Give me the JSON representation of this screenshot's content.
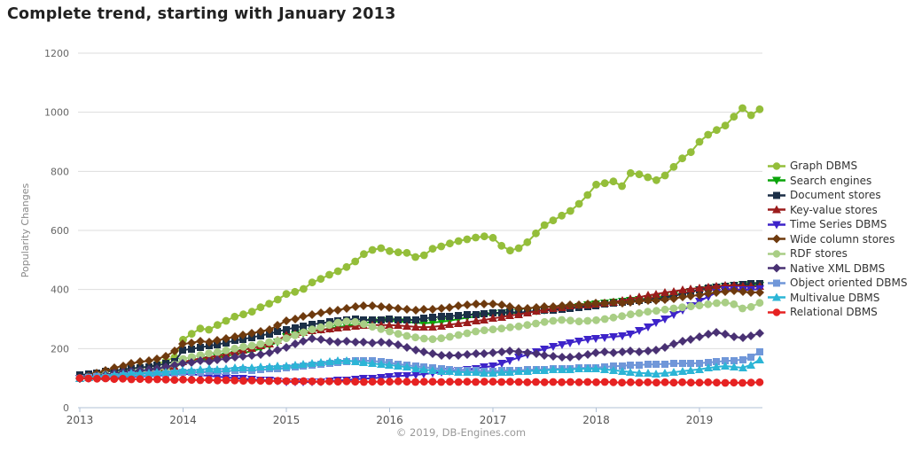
{
  "page": {
    "title": "Complete trend, starting with January 2013",
    "footer": "© 2019, DB-Engines.com"
  },
  "style": {
    "title_color": "#222222",
    "gridline_color": "#dddddd",
    "axis_line_color": "#b0c1d6",
    "ytick_color": "#666666",
    "xtick_color": "#555555",
    "ylabel_color": "#888888",
    "legend_text_color": "#333333"
  },
  "chart_data": {
    "type": "line",
    "title": "Complete trend, starting with January 2013",
    "xlabel": "",
    "ylabel": "Popularity Changes",
    "ylim": [
      0,
      1200
    ],
    "yticks": [
      0,
      200,
      400,
      600,
      800,
      1000,
      1200
    ],
    "x_tick_labels": [
      "2013",
      "2014",
      "2015",
      "2016",
      "2017",
      "2018",
      "2019"
    ],
    "x_start": "2013-01",
    "x_end": "2019-08",
    "x_interval": "month",
    "n_points": 80,
    "grid": true,
    "legend_position": "right",
    "footer": "© 2019, DB-Engines.com",
    "series": [
      {
        "name": "Graph DBMS",
        "color": "#94be3a",
        "marker": "circle",
        "values": [
          100,
          105,
          112,
          110,
          118,
          124,
          130,
          138,
          135,
          148,
          158,
          170,
          230,
          250,
          268,
          264,
          280,
          294,
          308,
          316,
          325,
          340,
          352,
          366,
          385,
          392,
          402,
          424,
          436,
          450,
          462,
          476,
          495,
          520,
          534,
          540,
          530,
          526,
          524,
          510,
          516,
          538,
          546,
          556,
          564,
          570,
          576,
          580,
          575,
          548,
          532,
          540,
          560,
          590,
          618,
          634,
          650,
          666,
          690,
          720,
          755,
          760,
          766,
          750,
          794,
          790,
          780,
          770,
          786,
          815,
          844,
          865,
          900,
          924,
          940,
          955,
          985,
          1014,
          990,
          1010
        ]
      },
      {
        "name": "Search engines",
        "color": "#0aa40a",
        "marker": "triangle-down",
        "values": [
          100,
          102,
          105,
          104,
          108,
          112,
          115,
          118,
          116,
          122,
          128,
          134,
          155,
          160,
          165,
          162,
          170,
          175,
          181,
          186,
          191,
          200,
          210,
          222,
          240,
          246,
          252,
          258,
          263,
          268,
          272,
          277,
          282,
          287,
          290,
          293,
          295,
          292,
          290,
          288,
          286,
          288,
          291,
          295,
          300,
          305,
          308,
          313,
          318,
          320,
          322,
          320,
          324,
          327,
          330,
          332,
          335,
          338,
          342,
          348,
          352,
          355,
          358,
          361,
          364,
          367,
          370,
          373,
          377,
          381,
          386,
          392,
          398,
          403,
          407,
          410,
          413,
          416,
          413,
          415
        ]
      },
      {
        "name": "Document stores",
        "color": "#1b2f47",
        "marker": "square",
        "values": [
          110,
          114,
          118,
          122,
          125,
          129,
          133,
          136,
          139,
          143,
          149,
          156,
          195,
          199,
          204,
          209,
          214,
          220,
          227,
          232,
          238,
          244,
          250,
          258,
          265,
          271,
          276,
          282,
          286,
          290,
          295,
          298,
          300,
          298,
          296,
          298,
          300,
          298,
          296,
          298,
          302,
          305,
          308,
          310,
          312,
          314,
          316,
          318,
          320,
          322,
          324,
          322,
          325,
          327,
          330,
          331,
          333,
          336,
          340,
          343,
          346,
          350,
          354,
          356,
          360,
          363,
          366,
          368,
          372,
          378,
          385,
          392,
          400,
          405,
          408,
          412,
          415,
          418,
          420,
          421
        ]
      },
      {
        "name": "Key-value stores",
        "color": "#9b1c1c",
        "marker": "triangle-up",
        "values": [
          100,
          103,
          106,
          104,
          108,
          112,
          116,
          119,
          121,
          126,
          131,
          137,
          155,
          161,
          167,
          171,
          176,
          181,
          189,
          196,
          201,
          209,
          216,
          228,
          245,
          250,
          255,
          260,
          263,
          266,
          270,
          273,
          276,
          278,
          280,
          280,
          280,
          278,
          276,
          274,
          272,
          274,
          277,
          281,
          285,
          289,
          293,
          297,
          302,
          307,
          312,
          316,
          321,
          326,
          332,
          336,
          340,
          344,
          347,
          348,
          350,
          354,
          358,
          362,
          368,
          374,
          380,
          385,
          390,
          394,
          398,
          402,
          405,
          408,
          411,
          413,
          415,
          412,
          410,
          410
        ]
      },
      {
        "name": "Time Series DBMS",
        "color": "#3d23c9",
        "marker": "triangle-down",
        "values": [
          100,
          99,
          101,
          103,
          102,
          104,
          106,
          105,
          107,
          108,
          110,
          112,
          115,
          113,
          110,
          108,
          105,
          103,
          100,
          98,
          96,
          94,
          92,
          90,
          88,
          87,
          86,
          87,
          88,
          90,
          92,
          94,
          96,
          98,
          100,
          102,
          105,
          107,
          109,
          111,
          114,
          117,
          120,
          123,
          126,
          129,
          133,
          137,
          141,
          150,
          160,
          170,
          180,
          190,
          199,
          207,
          214,
          220,
          226,
          231,
          235,
          238,
          240,
          243,
          248,
          260,
          272,
          288,
          300,
          315,
          330,
          345,
          360,
          376,
          390,
          398,
          400,
          398,
          400,
          401
        ]
      },
      {
        "name": "Wide column stores",
        "color": "#6e3a0e",
        "marker": "diamond",
        "values": [
          100,
          108,
          118,
          126,
          134,
          142,
          150,
          155,
          158,
          166,
          174,
          192,
          215,
          220,
          225,
          222,
          228,
          234,
          240,
          246,
          252,
          258,
          264,
          278,
          295,
          301,
          308,
          315,
          321,
          326,
          331,
          336,
          342,
          346,
          344,
          342,
          340,
          336,
          332,
          330,
          332,
          334,
          336,
          340,
          344,
          348,
          350,
          352,
          352,
          348,
          341,
          335,
          337,
          339,
          341,
          343,
          345,
          347,
          349,
          351,
          353,
          355,
          356,
          355,
          358,
          360,
          362,
          364,
          366,
          370,
          374,
          378,
          382,
          386,
          390,
          394,
          396,
          392,
          390,
          391
        ]
      },
      {
        "name": "RDF stores",
        "color": "#a9ce85",
        "marker": "circle",
        "values": [
          100,
          104,
          108,
          112,
          110,
          116,
          120,
          124,
          122,
          128,
          134,
          146,
          165,
          172,
          178,
          184,
          188,
          194,
          200,
          206,
          210,
          216,
          222,
          226,
          235,
          245,
          255,
          265,
          272,
          280,
          288,
          292,
          290,
          283,
          274,
          266,
          258,
          250,
          243,
          238,
          234,
          232,
          235,
          240,
          246,
          252,
          258,
          262,
          265,
          268,
          272,
          275,
          280,
          285,
          290,
          294,
          297,
          295,
          292,
          294,
          296,
          300,
          305,
          310,
          316,
          320,
          325,
          328,
          332,
          336,
          340,
          343,
          346,
          350,
          354,
          356,
          350,
          336,
          341,
          355
        ]
      },
      {
        "name": "Native XML DBMS",
        "color": "#493173",
        "marker": "diamond",
        "values": [
          100,
          104,
          108,
          112,
          116,
          119,
          122,
          125,
          128,
          132,
          138,
          144,
          150,
          154,
          158,
          156,
          162,
          166,
          170,
          174,
          176,
          180,
          186,
          196,
          205,
          215,
          225,
          234,
          230,
          226,
          223,
          225,
          221,
          222,
          220,
          221,
          220,
          212,
          204,
          196,
          188,
          182,
          178,
          176,
          178,
          180,
          182,
          184,
          186,
          190,
          193,
          190,
          186,
          182,
          178,
          175,
          172,
          170,
          174,
          180,
          185,
          188,
          186,
          190,
          192,
          190,
          193,
          196,
          205,
          215,
          225,
          232,
          240,
          248,
          255,
          248,
          240,
          236,
          244,
          251
        ]
      },
      {
        "name": "Object oriented DBMS",
        "color": "#7097d9",
        "marker": "square",
        "values": [
          100,
          102,
          104,
          103,
          106,
          108,
          110,
          109,
          111,
          113,
          115,
          117,
          120,
          119,
          121,
          123,
          122,
          124,
          126,
          128,
          127,
          129,
          131,
          133,
          135,
          138,
          141,
          144,
          147,
          150,
          153,
          156,
          158,
          160,
          158,
          155,
          152,
          148,
          144,
          140,
          137,
          134,
          131,
          129,
          127,
          126,
          125,
          124,
          124,
          125,
          126,
          127,
          128,
          129,
          130,
          131,
          132,
          133,
          134,
          135,
          136,
          138,
          140,
          142,
          144,
          145,
          146,
          147,
          148,
          149,
          150,
          150,
          151,
          153,
          155,
          158,
          160,
          163,
          170,
          190
        ]
      },
      {
        "name": "Multivalue DBMS",
        "color": "#2cb5d6",
        "marker": "triangle-up",
        "values": [
          100,
          103,
          106,
          109,
          112,
          114,
          116,
          118,
          117,
          119,
          121,
          124,
          127,
          126,
          129,
          131,
          130,
          132,
          134,
          136,
          135,
          137,
          139,
          140,
          141,
          144,
          147,
          150,
          153,
          156,
          158,
          160,
          157,
          153,
          149,
          147,
          145,
          141,
          137,
          133,
          129,
          126,
          124,
          122,
          121,
          120,
          119,
          118,
          118,
          119,
          121,
          122,
          124,
          125,
          127,
          128,
          129,
          130,
          131,
          132,
          132,
          130,
          127,
          124,
          121,
          118,
          116,
          115,
          117,
          120,
          124,
          127,
          130,
          134,
          138,
          141,
          138,
          135,
          145,
          163
        ]
      },
      {
        "name": "Relational DBMS",
        "color": "#e62222",
        "marker": "circle",
        "values": [
          100,
          99,
          98,
          99,
          97,
          98,
          96,
          97,
          95,
          96,
          95,
          94,
          95,
          94,
          93,
          94,
          92,
          93,
          92,
          91,
          92,
          91,
          90,
          91,
          90,
          89,
          90,
          89,
          88,
          89,
          88,
          89,
          88,
          87,
          88,
          88,
          88,
          89,
          88,
          87,
          88,
          88,
          87,
          88,
          87,
          88,
          87,
          88,
          88,
          87,
          88,
          87,
          86,
          87,
          86,
          87,
          86,
          87,
          86,
          87,
          86,
          87,
          86,
          85,
          86,
          85,
          86,
          85,
          86,
          85,
          86,
          85,
          85,
          86,
          85,
          84,
          85,
          84,
          85,
          86
        ]
      }
    ]
  }
}
